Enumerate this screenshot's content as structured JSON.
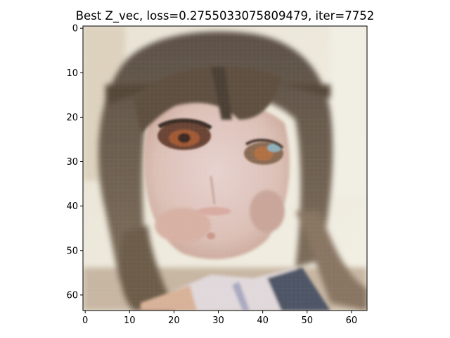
{
  "figure": {
    "title": "Best Z_vec, loss=0.2755033075809479, iter=7752"
  },
  "axes": {
    "x_ticks": [
      "0",
      "10",
      "20",
      "30",
      "40",
      "50",
      "60"
    ],
    "y_ticks": [
      "0",
      "10",
      "20",
      "30",
      "40",
      "50",
      "60"
    ],
    "x_range": [
      -0.5,
      63.5
    ],
    "y_range": [
      -0.5,
      63.5
    ],
    "y_inverted": true
  },
  "image": {
    "resolution": "64x64"
  },
  "colors": {
    "axis": "#000000",
    "background": "#ffffff"
  }
}
